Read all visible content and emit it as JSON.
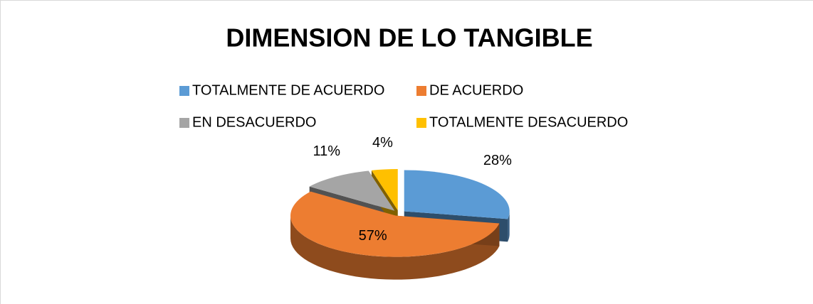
{
  "chart_data": {
    "type": "pie",
    "title": "DIMENSION DE LO TANGIBLE",
    "categories": [
      "TOTALMENTE DE ACUERDO",
      "DE ACUERDO",
      "EN DESACUERDO",
      "TOTALMENTE DESACUERDO"
    ],
    "values": [
      28,
      57,
      11,
      4
    ],
    "value_labels": [
      "28%",
      "57%",
      "11%",
      "4%"
    ],
    "colors": [
      "#5b9bd5",
      "#ed7d31",
      "#a5a5a5",
      "#ffc000"
    ],
    "legend": "top"
  }
}
